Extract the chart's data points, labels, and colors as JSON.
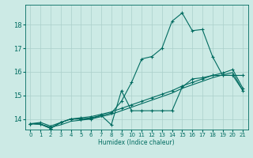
{
  "xlabel": "Humidex (Indice chaleur)",
  "ylabel": "",
  "xlim": [
    -0.5,
    21.5
  ],
  "ylim": [
    13.55,
    18.85
  ],
  "background_color": "#cceae5",
  "line_color": "#006b60",
  "grid_color": "#aacfca",
  "x_ticks": [
    0,
    1,
    2,
    3,
    4,
    5,
    6,
    7,
    8,
    9,
    10,
    11,
    12,
    13,
    14,
    15,
    16,
    17,
    18,
    19,
    20,
    21
  ],
  "y_ticks": [
    14,
    15,
    16,
    17,
    18
  ],
  "series": [
    {
      "x": [
        0,
        1,
        2,
        3,
        4,
        5,
        6,
        7,
        8,
        9,
        10,
        11,
        12,
        13,
        14,
        15,
        16,
        17,
        18,
        19,
        20,
        21
      ],
      "y": [
        13.8,
        13.85,
        13.7,
        13.85,
        14.0,
        14.05,
        14.1,
        14.2,
        14.3,
        14.45,
        14.6,
        14.75,
        14.9,
        15.05,
        15.2,
        15.4,
        15.55,
        15.7,
        15.85,
        15.95,
        16.1,
        15.3
      ],
      "marker": "+"
    },
    {
      "x": [
        0,
        1,
        2,
        3,
        4,
        5,
        6,
        7,
        8,
        9,
        10,
        11,
        12,
        13,
        14,
        15,
        16,
        17,
        18,
        19,
        20,
        21
      ],
      "y": [
        13.8,
        13.78,
        13.65,
        13.75,
        13.9,
        13.95,
        14.0,
        14.1,
        14.2,
        14.35,
        14.5,
        14.65,
        14.8,
        14.95,
        15.1,
        15.3,
        15.45,
        15.6,
        15.75,
        15.87,
        15.97,
        15.2
      ],
      "marker": null
    },
    {
      "x": [
        0,
        1,
        2,
        3,
        4,
        5,
        6,
        7,
        8,
        9,
        10,
        11,
        12,
        13,
        14,
        15,
        16,
        17,
        18,
        19,
        20,
        21
      ],
      "y": [
        13.8,
        13.78,
        13.6,
        13.85,
        14.0,
        14.0,
        14.0,
        14.15,
        13.75,
        15.2,
        14.35,
        14.35,
        14.35,
        14.35,
        14.35,
        15.35,
        15.7,
        15.75,
        15.85,
        15.85,
        15.85,
        15.2
      ],
      "marker": "+"
    },
    {
      "x": [
        0,
        1,
        2,
        3,
        4,
        5,
        6,
        7,
        8,
        9,
        10,
        11,
        12,
        13,
        14,
        15,
        16,
        17,
        18,
        19,
        20,
        21
      ],
      "y": [
        13.8,
        13.78,
        13.6,
        13.85,
        14.0,
        14.0,
        14.05,
        14.15,
        14.25,
        14.75,
        15.55,
        16.55,
        16.65,
        17.0,
        18.15,
        18.5,
        17.75,
        17.8,
        16.65,
        15.85,
        15.85,
        15.85
      ],
      "marker": "+"
    }
  ]
}
